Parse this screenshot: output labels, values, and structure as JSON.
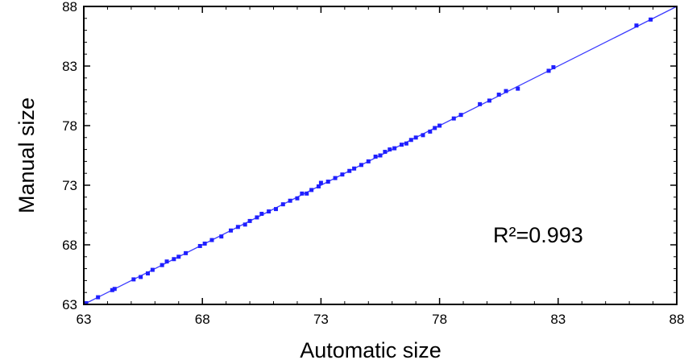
{
  "chart_data": {
    "type": "scatter",
    "xlabel": "Automatic size",
    "ylabel": "Manual size",
    "xlim": [
      63,
      88
    ],
    "ylim": [
      63,
      88
    ],
    "xticks": [
      "63",
      "68",
      "73",
      "78",
      "83",
      "88"
    ],
    "yticks": [
      "63",
      "68",
      "73",
      "78",
      "83",
      "88"
    ],
    "annotation": "R²=0.993",
    "grid": false,
    "fit_line": {
      "x": [
        63,
        88
      ],
      "y": [
        63,
        88
      ]
    },
    "colors": {
      "points": "#1f1fff",
      "line": "#3a3aff",
      "axes": "#000000"
    },
    "series": [
      {
        "x": [
          63.1,
          63.6,
          64.2,
          64.3,
          65.1,
          65.4,
          65.7,
          65.9,
          66.3,
          66.5,
          66.8,
          67.0,
          67.3,
          67.9,
          68.1,
          68.4,
          68.8,
          69.2,
          69.5,
          69.8,
          70.0,
          70.3,
          70.5,
          70.8,
          71.1,
          71.4,
          71.7,
          72.0,
          72.2,
          72.4,
          72.6,
          72.9,
          73.0,
          73.3,
          73.6,
          73.9,
          74.2,
          74.4,
          74.7,
          75.0,
          75.3,
          75.5,
          75.7,
          75.9,
          76.1,
          76.4,
          76.6,
          76.8,
          77.0,
          77.3,
          77.6,
          77.8,
          78.0,
          78.6,
          78.9,
          79.7,
          80.1,
          80.5,
          80.8,
          81.3,
          82.6,
          82.8,
          86.3,
          86.9
        ],
        "y": [
          63.1,
          63.6,
          64.2,
          64.3,
          65.1,
          65.3,
          65.6,
          65.9,
          66.3,
          66.6,
          66.8,
          67.0,
          67.3,
          67.9,
          68.1,
          68.4,
          68.7,
          69.2,
          69.5,
          69.7,
          70.0,
          70.3,
          70.6,
          70.8,
          71.0,
          71.4,
          71.7,
          71.9,
          72.3,
          72.3,
          72.6,
          72.9,
          73.2,
          73.3,
          73.6,
          73.9,
          74.2,
          74.4,
          74.7,
          75.0,
          75.4,
          75.5,
          75.8,
          76.0,
          76.1,
          76.4,
          76.5,
          76.8,
          77.0,
          77.2,
          77.5,
          77.8,
          78.0,
          78.6,
          78.9,
          79.8,
          80.1,
          80.6,
          80.9,
          81.1,
          82.6,
          82.9,
          86.4,
          86.9
        ]
      }
    ]
  }
}
